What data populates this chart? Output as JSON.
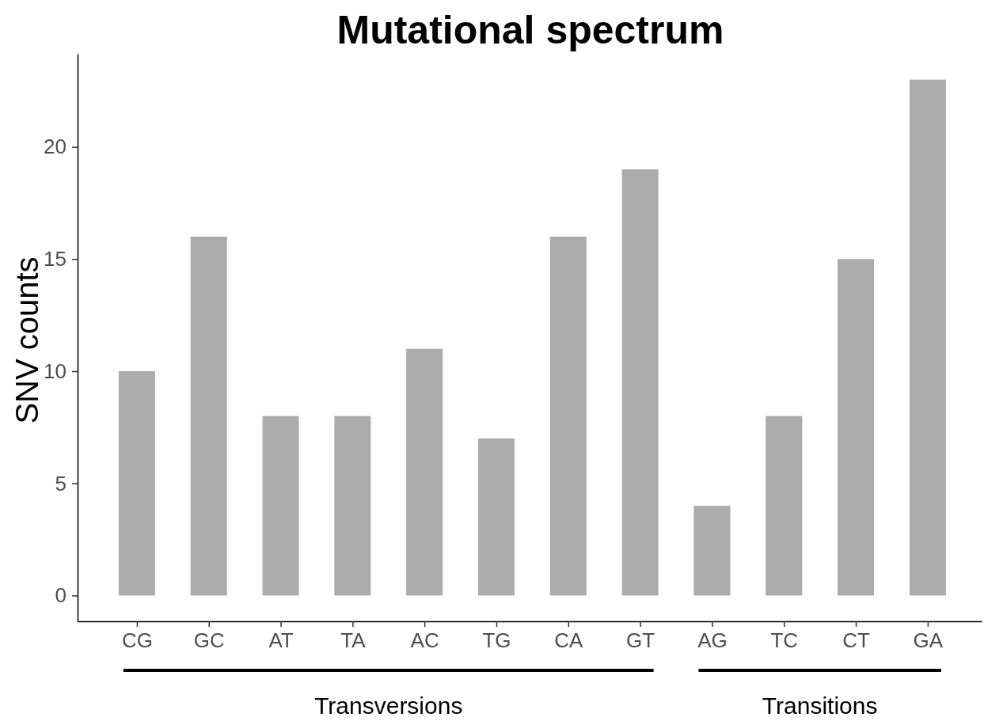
{
  "chart_data": {
    "type": "bar",
    "title": "Mutational spectrum",
    "ylabel": "SNV counts",
    "categories": [
      "CG",
      "GC",
      "AT",
      "TA",
      "AC",
      "TG",
      "CA",
      "GT",
      "AG",
      "TC",
      "CT",
      "GA"
    ],
    "values": [
      10,
      16,
      8,
      8,
      11,
      7,
      16,
      19,
      4,
      8,
      15,
      23
    ],
    "color": "#ababab",
    "ylim": [
      -1.15,
      24.15
    ],
    "yticks": [
      0,
      5,
      10,
      15,
      20
    ],
    "annotations": [
      "Transversions",
      "Transitions"
    ],
    "grid": false
  }
}
